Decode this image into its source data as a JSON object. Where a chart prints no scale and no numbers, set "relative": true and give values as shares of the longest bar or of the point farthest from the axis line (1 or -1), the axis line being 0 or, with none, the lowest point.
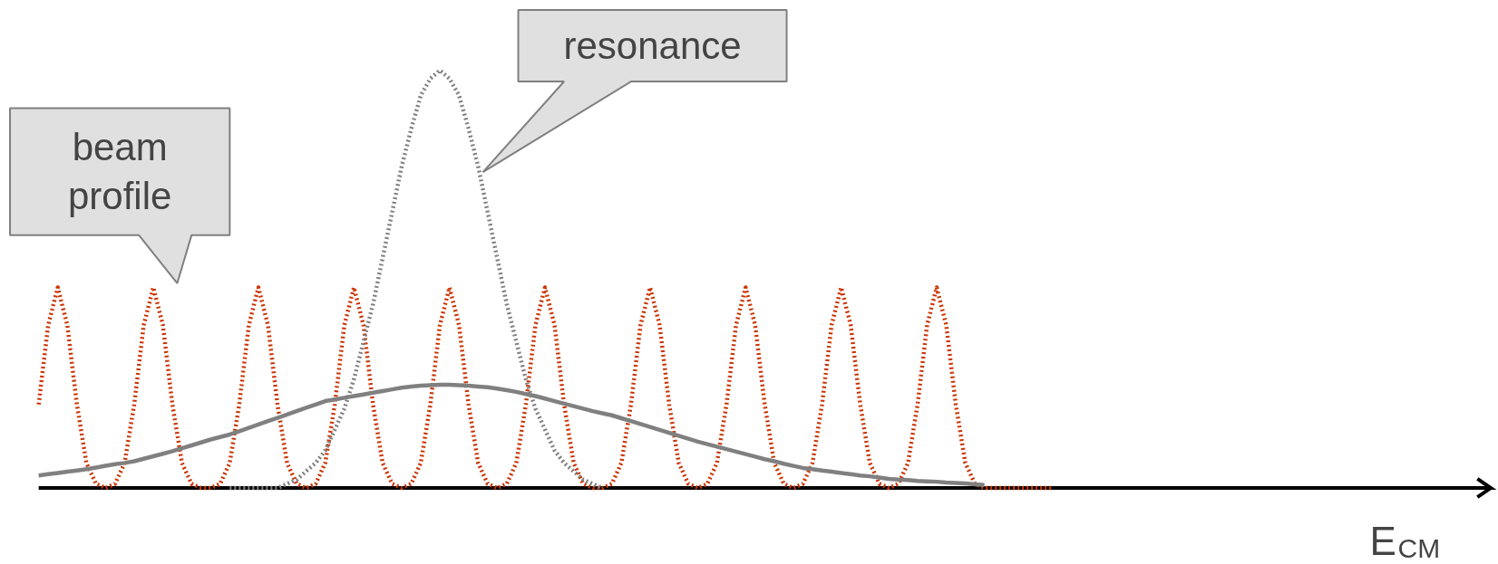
{
  "chart_data": {
    "type": "line",
    "relative": true,
    "marker": "none",
    "annotations": [
      "beam profile",
      "resonance",
      "E$_{CM}$"
    ],
    "categories": [
      null,
      null,
      null,
      null,
      null,
      null,
      null,
      null,
      null,
      null,
      null,
      null,
      null,
      null,
      null,
      null,
      null,
      null,
      null,
      null,
      null,
      null,
      null,
      null,
      null,
      null,
      null,
      null,
      null,
      null,
      null,
      null,
      null,
      null,
      null,
      null,
      null,
      null,
      null,
      null,
      null,
      null,
      null,
      null,
      null,
      null,
      null,
      null,
      null,
      null,
      null,
      null,
      null,
      null,
      null,
      null,
      null,
      null,
      null,
      null,
      null,
      null,
      null,
      null,
      null,
      null,
      null,
      null,
      null,
      null,
      null,
      null,
      null,
      null,
      null,
      null,
      null,
      null,
      null,
      null,
      null,
      null,
      null,
      null,
      null,
      null,
      null,
      null,
      null,
      null,
      null,
      null,
      null,
      null,
      null,
      null,
      null,
      null,
      null,
      null,
      null,
      null,
      null,
      null,
      null,
      null,
      null
    ],
    "series": [
      {
        "color": "#cc3300",
        "line_style": "dotted",
        "values": [
          0.2,
          0.39,
          0.48,
          0.39,
          0.2,
          0.06,
          0.01,
          0,
          0.01,
          0.06,
          0.2,
          0.39,
          0.48,
          0.39,
          0.2,
          0.06,
          0.01,
          0,
          0,
          0.01,
          0.06,
          0.2,
          0.39,
          0.48,
          0.39,
          0.2,
          0.06,
          0.01,
          0,
          0.01,
          0.06,
          0.2,
          0.39,
          0.48,
          0.39,
          0.2,
          0.06,
          0.01,
          0,
          0.01,
          0.06,
          0.2,
          0.39,
          0.48,
          0.39,
          0.2,
          0.06,
          0.01,
          0,
          0.01,
          0.06,
          0.2,
          0.39,
          0.48,
          0.39,
          0.2,
          0.06,
          0.01,
          0,
          0,
          0.01,
          0.06,
          0.2,
          0.39,
          0.48,
          0.39,
          0.2,
          0.06,
          0.01,
          0,
          0.01,
          0.06,
          0.2,
          0.39,
          0.48,
          0.39,
          0.2,
          0.06,
          0.01,
          0,
          0.01,
          0.06,
          0.2,
          0.39,
          0.48,
          0.39,
          0.2,
          0.06,
          0.01,
          0,
          0.01,
          0.06,
          0.2,
          0.39,
          0.48,
          0.39,
          0.2,
          0.06,
          0.01,
          0,
          0,
          0,
          0,
          0,
          0,
          0,
          0
        ]
      },
      {
        "color": "#808080",
        "line_style": "dotted",
        "values": [
          null,
          null,
          null,
          null,
          null,
          null,
          null,
          null,
          null,
          null,
          null,
          null,
          null,
          null,
          null,
          null,
          null,
          null,
          null,
          null,
          0,
          0,
          0,
          0,
          0,
          0,
          0.01,
          0.02,
          0.04,
          0.06,
          0.09,
          0.14,
          0.19,
          0.26,
          0.35,
          0.44,
          0.55,
          0.66,
          0.77,
          0.86,
          0.94,
          0.98,
          1,
          0.98,
          0.94,
          0.86,
          0.77,
          0.66,
          0.55,
          0.44,
          0.35,
          0.26,
          0.19,
          0.14,
          0.09,
          0.06,
          0.04,
          0.02,
          0.01,
          0,
          null,
          null,
          null,
          null,
          null,
          null,
          null,
          null,
          null,
          null,
          null,
          null,
          null,
          null,
          null,
          null,
          null,
          null,
          null,
          null,
          null,
          null,
          null,
          null,
          null,
          null,
          null,
          null,
          null,
          null,
          null,
          null,
          null,
          null,
          null,
          null,
          null,
          null,
          null,
          null,
          null,
          null,
          null,
          null,
          null,
          null,
          null
        ]
      },
      {
        "color": "#808080",
        "line_style": "solid",
        "values": [
          0.03,
          0.033,
          0.036,
          0.039,
          0.042,
          0.045,
          0.049,
          0.053,
          0.057,
          0.06,
          0.064,
          0.07,
          0.076,
          0.082,
          0.088,
          0.095,
          0.102,
          0.109,
          0.116,
          0.122,
          0.128,
          0.136,
          0.144,
          0.152,
          0.16,
          0.168,
          0.176,
          0.184,
          0.192,
          0.2,
          0.208,
          0.212,
          0.216,
          0.22,
          0.224,
          0.228,
          0.232,
          0.236,
          0.24,
          0.243,
          0.245,
          0.246,
          0.247,
          0.247,
          0.246,
          0.245,
          0.243,
          0.241,
          0.238,
          0.234,
          0.23,
          0.225,
          0.22,
          0.214,
          0.208,
          0.202,
          0.196,
          0.19,
          0.184,
          0.179,
          0.174,
          0.167,
          0.16,
          0.153,
          0.146,
          0.139,
          0.132,
          0.125,
          0.118,
          0.111,
          0.105,
          0.099,
          0.093,
          0.087,
          0.081,
          0.075,
          0.069,
          0.064,
          0.058,
          0.053,
          0.048,
          0.045,
          0.042,
          0.039,
          0.036,
          0.033,
          0.03,
          0.028,
          0.025,
          0.022,
          0.02,
          0.019,
          0.017,
          0.016,
          0.015,
          0.013,
          0.012,
          0.011,
          0.009,
          0.007,
          null,
          null,
          null,
          null,
          null,
          null,
          null
        ]
      }
    ]
  }
}
